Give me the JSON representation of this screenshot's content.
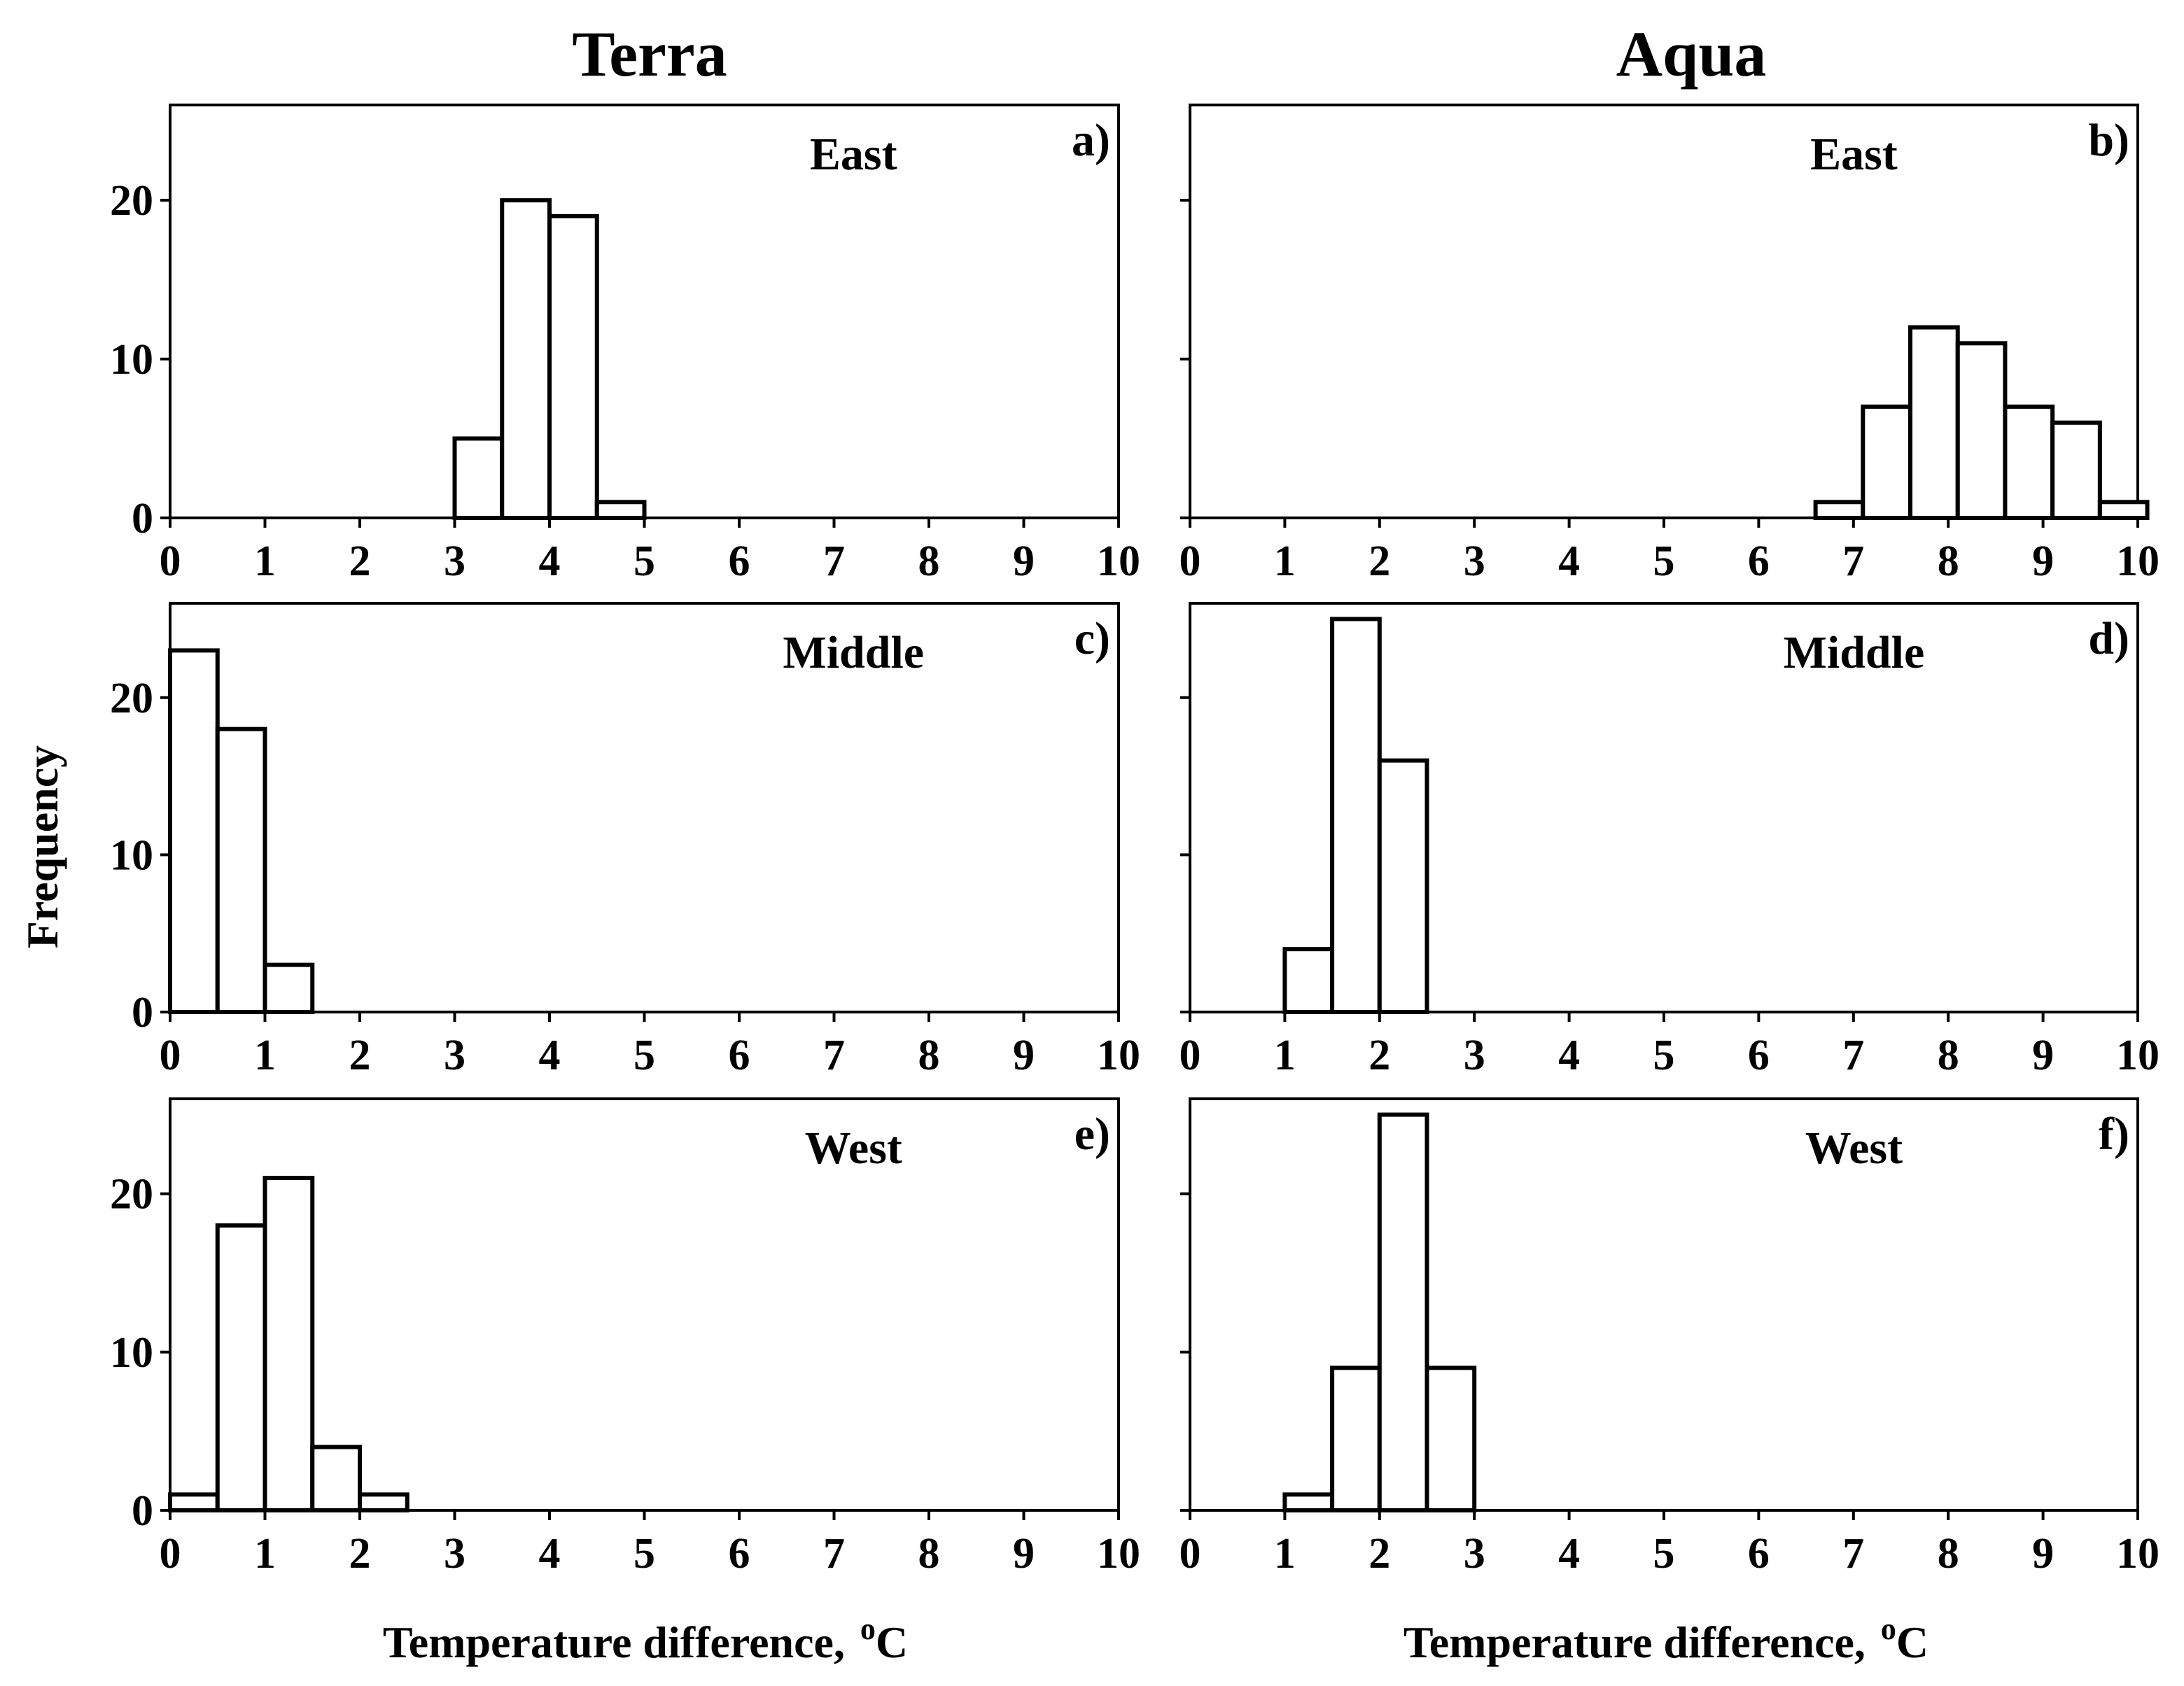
{
  "figure": {
    "col_titles": [
      "Terra",
      "Aqua"
    ],
    "ylabel": "Frequency",
    "xlabel": "Temperature  difference,",
    "unit_sup": "o",
    "unit": "C"
  },
  "chart_data": [
    {
      "type": "bar",
      "panel": "a)",
      "region": "East",
      "satellite": "Terra",
      "bin_width": 0.5,
      "bins": [
        3.0,
        3.5,
        4.0,
        4.5
      ],
      "values": [
        5,
        20,
        19,
        1
      ],
      "xlim": [
        0,
        10
      ],
      "ylim": [
        0,
        26
      ],
      "xticks": [
        0,
        1,
        2,
        3,
        4,
        5,
        6,
        7,
        8,
        9,
        10
      ],
      "yticks": [
        0,
        10,
        20
      ],
      "xlabel": "Temperature  difference, oC",
      "ylabel": "Frequency"
    },
    {
      "type": "bar",
      "panel": "b)",
      "region": "East",
      "satellite": "Aqua",
      "bin_width": 0.5,
      "bins": [
        6.6,
        7.1,
        7.6,
        8.1,
        8.6,
        9.1,
        9.6
      ],
      "values": [
        1,
        7,
        12,
        11,
        7,
        6,
        1
      ],
      "xlim": [
        0,
        10
      ],
      "ylim": [
        0,
        26
      ],
      "xticks": [
        0,
        1,
        2,
        3,
        4,
        5,
        6,
        7,
        8,
        9,
        10
      ],
      "yticks": [
        0,
        10,
        20
      ],
      "xlabel": "Temperature  difference, oC",
      "ylabel": "Frequency"
    },
    {
      "type": "bar",
      "panel": "c)",
      "region": "Middle",
      "satellite": "Terra",
      "bin_width": 0.5,
      "bins": [
        0.0,
        0.5,
        1.0
      ],
      "values": [
        23,
        18,
        3
      ],
      "xlim": [
        0,
        10
      ],
      "ylim": [
        0,
        26
      ],
      "xticks": [
        0,
        1,
        2,
        3,
        4,
        5,
        6,
        7,
        8,
        9,
        10
      ],
      "yticks": [
        0,
        10,
        20
      ],
      "xlabel": "Temperature  difference, oC",
      "ylabel": "Frequency"
    },
    {
      "type": "bar",
      "panel": "d)",
      "region": "Middle",
      "satellite": "Aqua",
      "bin_width": 0.5,
      "bins": [
        1.0,
        1.5,
        2.0
      ],
      "values": [
        4,
        25,
        16
      ],
      "xlim": [
        0,
        10
      ],
      "ylim": [
        0,
        26
      ],
      "xticks": [
        0,
        1,
        2,
        3,
        4,
        5,
        6,
        7,
        8,
        9,
        10
      ],
      "yticks": [
        0,
        10,
        20
      ],
      "xlabel": "Temperature  difference, oC",
      "ylabel": "Frequency"
    },
    {
      "type": "bar",
      "panel": "e)",
      "region": "West",
      "satellite": "Terra",
      "bin_width": 0.5,
      "bins": [
        0.0,
        0.5,
        1.0,
        1.5,
        2.0
      ],
      "values": [
        1,
        18,
        21,
        4,
        1
      ],
      "xlim": [
        0,
        10
      ],
      "ylim": [
        0,
        26
      ],
      "xticks": [
        0,
        1,
        2,
        3,
        4,
        5,
        6,
        7,
        8,
        9,
        10
      ],
      "yticks": [
        0,
        10,
        20
      ],
      "xlabel": "Temperature  difference, oC",
      "ylabel": "Frequency"
    },
    {
      "type": "bar",
      "panel": "f)",
      "region": "West",
      "satellite": "Aqua",
      "bin_width": 0.5,
      "bins": [
        1.0,
        1.5,
        2.0,
        2.5
      ],
      "values": [
        1,
        9,
        25,
        9
      ],
      "xlim": [
        0,
        10
      ],
      "ylim": [
        0,
        26
      ],
      "xticks": [
        0,
        1,
        2,
        3,
        4,
        5,
        6,
        7,
        8,
        9,
        10
      ],
      "yticks": [
        0,
        10,
        20
      ],
      "xlabel": "Temperature  difference, oC",
      "ylabel": "Frequency"
    }
  ]
}
